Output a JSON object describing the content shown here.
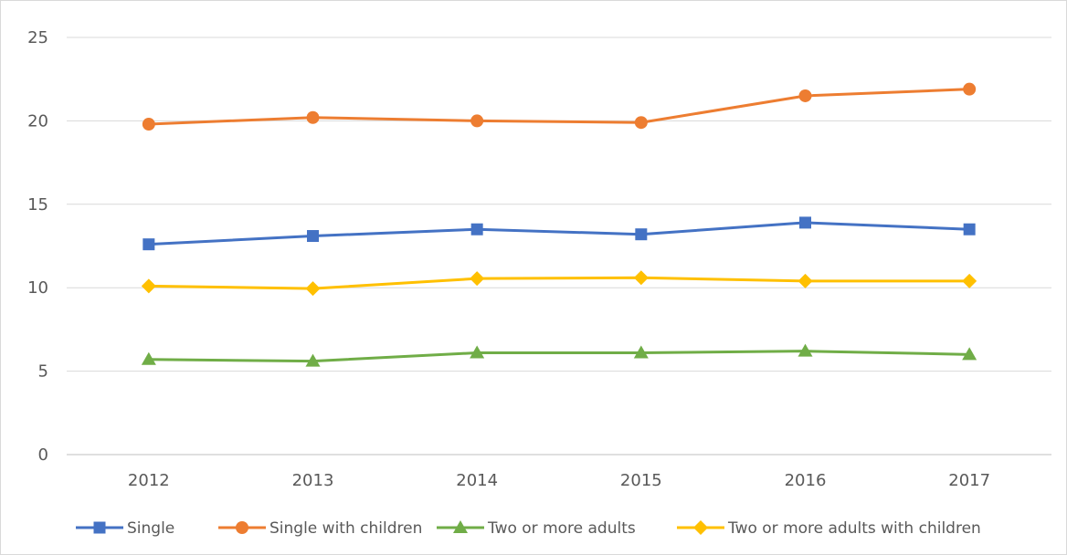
{
  "chart_data": {
    "type": "line",
    "title": "",
    "xlabel": "",
    "ylabel": "",
    "categories": [
      "2012",
      "2013",
      "2014",
      "2015",
      "2016",
      "2017"
    ],
    "ylim": [
      0,
      25
    ],
    "yticks": [
      0,
      5,
      10,
      15,
      20,
      25
    ],
    "grid": true,
    "legend_position": "bottom",
    "series": [
      {
        "name": "Single",
        "color": "#4472c4",
        "marker": "square",
        "values": [
          12.6,
          13.1,
          13.5,
          13.2,
          13.9,
          13.5
        ]
      },
      {
        "name": "Single with children",
        "color": "#ed7d31",
        "marker": "circle",
        "values": [
          19.8,
          20.2,
          20.0,
          19.9,
          21.5,
          21.9
        ]
      },
      {
        "name": "Two or more adults",
        "color": "#70ad47",
        "marker": "triangle",
        "values": [
          5.7,
          5.6,
          6.1,
          6.1,
          6.2,
          6.0
        ]
      },
      {
        "name": "Two or more adults with children",
        "color": "#ffc000",
        "marker": "diamond",
        "values": [
          10.1,
          9.95,
          10.55,
          10.6,
          10.4,
          10.4
        ]
      }
    ]
  }
}
